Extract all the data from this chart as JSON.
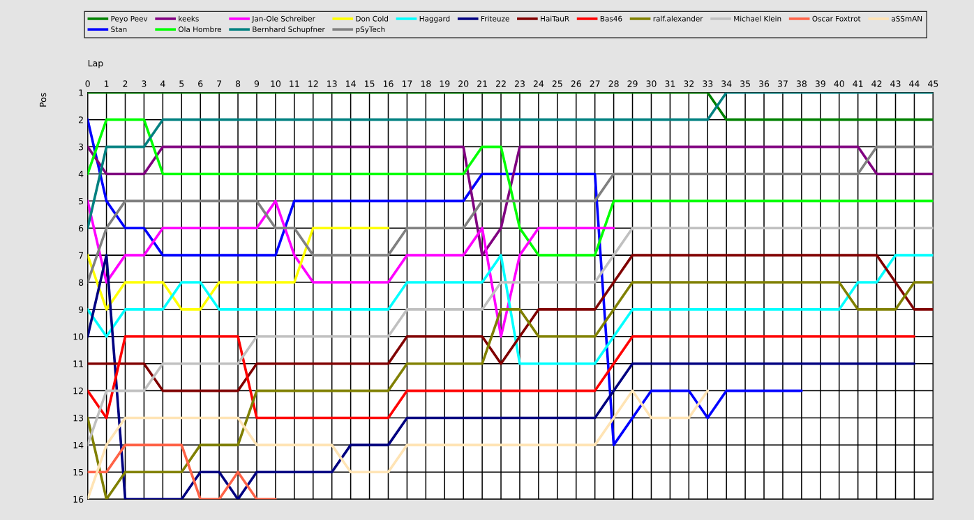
{
  "chart_data": {
    "type": "line",
    "xlabel": "Lap",
    "ylabel": "Pos",
    "x": [
      0,
      1,
      2,
      3,
      4,
      5,
      6,
      7,
      8,
      9,
      10,
      11,
      12,
      13,
      14,
      15,
      16,
      17,
      18,
      19,
      20,
      21,
      22,
      23,
      24,
      25,
      26,
      27,
      28,
      29,
      30,
      31,
      32,
      33,
      34,
      35,
      36,
      37,
      38,
      39,
      40,
      41,
      42,
      43,
      44,
      45
    ],
    "xlim": [
      0,
      45
    ],
    "xticks": [
      0,
      1,
      2,
      3,
      4,
      5,
      6,
      7,
      8,
      9,
      10,
      11,
      12,
      13,
      14,
      15,
      16,
      17,
      18,
      19,
      20,
      21,
      22,
      23,
      24,
      25,
      26,
      27,
      28,
      29,
      30,
      31,
      32,
      33,
      34,
      35,
      36,
      37,
      38,
      39,
      40,
      41,
      42,
      43,
      44,
      45
    ],
    "ylim": [
      16,
      1
    ],
    "yticks": [
      1,
      2,
      3,
      4,
      5,
      6,
      7,
      8,
      9,
      10,
      11,
      12,
      13,
      14,
      15,
      16
    ],
    "grid": true,
    "legend": "top",
    "marker": "none",
    "line_style": "solid",
    "series": [
      {
        "name": "Peyo Peev",
        "color": "#008000",
        "values": [
          1,
          1,
          1,
          1,
          1,
          1,
          1,
          1,
          1,
          1,
          1,
          1,
          1,
          1,
          1,
          1,
          1,
          1,
          1,
          1,
          1,
          1,
          1,
          1,
          1,
          1,
          1,
          1,
          1,
          1,
          1,
          1,
          1,
          1,
          2,
          2,
          2,
          2,
          2,
          2,
          2,
          2,
          2,
          2,
          2,
          2
        ]
      },
      {
        "name": "Stan",
        "color": "#0000ff",
        "values": [
          2,
          5,
          6,
          6,
          7,
          7,
          7,
          7,
          7,
          7,
          7,
          5,
          5,
          5,
          5,
          5,
          5,
          5,
          5,
          5,
          5,
          4,
          4,
          4,
          4,
          4,
          4,
          4,
          14,
          13,
          12,
          12,
          12,
          13,
          12,
          12,
          12,
          12,
          12,
          null,
          null,
          null,
          null,
          null,
          null,
          null
        ]
      },
      {
        "name": "keeks",
        "color": "#800080",
        "values": [
          3,
          4,
          4,
          4,
          3,
          3,
          3,
          3,
          3,
          3,
          3,
          3,
          3,
          3,
          3,
          3,
          3,
          3,
          3,
          3,
          3,
          7,
          6,
          3,
          3,
          3,
          3,
          3,
          3,
          3,
          3,
          3,
          3,
          3,
          3,
          3,
          3,
          3,
          3,
          3,
          3,
          3,
          4,
          4,
          4,
          4
        ]
      },
      {
        "name": "Ola Hombre",
        "color": "#00ff00",
        "values": [
          4,
          2,
          2,
          2,
          4,
          4,
          4,
          4,
          4,
          4,
          4,
          4,
          4,
          4,
          4,
          4,
          4,
          4,
          4,
          4,
          4,
          3,
          3,
          6,
          7,
          7,
          7,
          7,
          5,
          5,
          5,
          5,
          5,
          5,
          5,
          5,
          5,
          5,
          5,
          5,
          5,
          5,
          5,
          5,
          5,
          5
        ]
      },
      {
        "name": "Jan-Ole Schreiber",
        "color": "#ff00ff",
        "values": [
          5,
          8,
          7,
          7,
          6,
          6,
          6,
          6,
          6,
          6,
          5,
          7,
          8,
          8,
          8,
          8,
          8,
          7,
          7,
          7,
          7,
          6,
          10,
          7,
          6,
          6,
          6,
          6,
          6,
          null,
          null,
          null,
          null,
          null,
          null,
          null,
          null,
          null,
          null,
          null,
          null,
          null,
          null,
          null,
          null,
          null
        ]
      },
      {
        "name": "Bernhard Schupfner",
        "color": "#008080",
        "values": [
          6,
          3,
          3,
          3,
          2,
          2,
          2,
          2,
          2,
          2,
          2,
          2,
          2,
          2,
          2,
          2,
          2,
          2,
          2,
          2,
          2,
          2,
          2,
          2,
          2,
          2,
          2,
          2,
          2,
          2,
          2,
          2,
          2,
          2,
          1,
          1,
          1,
          1,
          1,
          1,
          1,
          1,
          1,
          1,
          1,
          1
        ]
      },
      {
        "name": "Don Cold",
        "color": "#ffff00",
        "values": [
          7,
          9,
          8,
          8,
          8,
          9,
          9,
          8,
          8,
          8,
          8,
          8,
          6,
          6,
          6,
          6,
          6,
          null,
          null,
          null,
          null,
          null,
          null,
          null,
          null,
          null,
          null,
          null,
          null,
          null,
          null,
          null,
          null,
          null,
          null,
          null,
          null,
          null,
          null,
          null,
          null,
          null,
          null,
          null,
          null,
          null
        ]
      },
      {
        "name": "pSyTech",
        "color": "#808080",
        "values": [
          8,
          6,
          5,
          5,
          5,
          5,
          5,
          5,
          5,
          5,
          6,
          6,
          7,
          7,
          7,
          7,
          7,
          6,
          6,
          6,
          6,
          5,
          5,
          5,
          5,
          5,
          5,
          5,
          4,
          4,
          4,
          4,
          4,
          4,
          4,
          4,
          4,
          4,
          4,
          4,
          4,
          4,
          3,
          3,
          3,
          3
        ]
      },
      {
        "name": "Haggard",
        "color": "#00ffff",
        "values": [
          9,
          10,
          9,
          9,
          9,
          8,
          8,
          9,
          9,
          9,
          9,
          9,
          9,
          9,
          9,
          9,
          9,
          8,
          8,
          8,
          8,
          8,
          7,
          11,
          11,
          11,
          11,
          11,
          10,
          9,
          9,
          9,
          9,
          9,
          9,
          9,
          9,
          9,
          9,
          9,
          9,
          8,
          8,
          7,
          7,
          7
        ]
      },
      {
        "name": "Friteuze",
        "color": "#000080",
        "values": [
          10,
          7,
          16,
          16,
          16,
          16,
          15,
          15,
          16,
          15,
          15,
          15,
          15,
          15,
          14,
          14,
          14,
          13,
          13,
          13,
          13,
          13,
          13,
          13,
          13,
          13,
          13,
          13,
          12,
          11,
          11,
          11,
          11,
          11,
          11,
          11,
          11,
          11,
          11,
          11,
          11,
          11,
          11,
          11,
          11,
          null
        ]
      },
      {
        "name": "HaiTauR",
        "color": "#800000",
        "values": [
          11,
          11,
          11,
          11,
          12,
          12,
          12,
          12,
          12,
          11,
          11,
          11,
          11,
          11,
          11,
          11,
          11,
          10,
          10,
          10,
          10,
          10,
          11,
          10,
          9,
          9,
          9,
          9,
          8,
          7,
          7,
          7,
          7,
          7,
          7,
          7,
          7,
          7,
          7,
          7,
          7,
          7,
          7,
          8,
          9,
          9
        ]
      },
      {
        "name": "Bas46",
        "color": "#ff0000",
        "values": [
          12,
          13,
          10,
          10,
          10,
          10,
          10,
          10,
          10,
          13,
          13,
          13,
          13,
          13,
          13,
          13,
          13,
          12,
          12,
          12,
          12,
          12,
          12,
          12,
          12,
          12,
          12,
          12,
          11,
          10,
          10,
          10,
          10,
          10,
          10,
          10,
          10,
          10,
          10,
          10,
          10,
          10,
          10,
          10,
          10,
          null
        ]
      },
      {
        "name": "ralf.alexander",
        "color": "#808000",
        "values": [
          13,
          16,
          15,
          15,
          15,
          15,
          14,
          14,
          14,
          12,
          12,
          12,
          12,
          12,
          12,
          12,
          12,
          11,
          11,
          11,
          11,
          11,
          9,
          9,
          10,
          10,
          10,
          10,
          9,
          8,
          8,
          8,
          8,
          8,
          8,
          8,
          8,
          8,
          8,
          8,
          8,
          9,
          9,
          9,
          8,
          8
        ]
      },
      {
        "name": "Michael Klein",
        "color": "#c0c0c0",
        "values": [
          14,
          12,
          12,
          12,
          11,
          11,
          11,
          11,
          11,
          10,
          10,
          10,
          10,
          10,
          10,
          10,
          10,
          9,
          9,
          9,
          9,
          9,
          8,
          8,
          8,
          8,
          8,
          8,
          7,
          6,
          6,
          6,
          6,
          6,
          6,
          6,
          6,
          6,
          6,
          6,
          6,
          6,
          6,
          6,
          6,
          6
        ]
      },
      {
        "name": "Oscar Foxtrot",
        "color": "#ff6347",
        "values": [
          15,
          15,
          14,
          14,
          14,
          14,
          16,
          16,
          15,
          16,
          16,
          null,
          null,
          null,
          null,
          null,
          null,
          null,
          null,
          null,
          null,
          null,
          null,
          null,
          null,
          null,
          null,
          null,
          null,
          null,
          null,
          null,
          null,
          null,
          null,
          null,
          null,
          null,
          null,
          null,
          null,
          null,
          null,
          null,
          null,
          null
        ]
      },
      {
        "name": "aSSmAN",
        "color": "#ffe4b5",
        "values": [
          16,
          14,
          13,
          13,
          13,
          13,
          13,
          13,
          13,
          14,
          14,
          14,
          14,
          14,
          15,
          15,
          15,
          14,
          14,
          14,
          14,
          14,
          14,
          14,
          14,
          14,
          14,
          14,
          13,
          12,
          13,
          13,
          13,
          12,
          null,
          null,
          null,
          null,
          null,
          null,
          null,
          null,
          null,
          null,
          null,
          null
        ]
      }
    ]
  }
}
